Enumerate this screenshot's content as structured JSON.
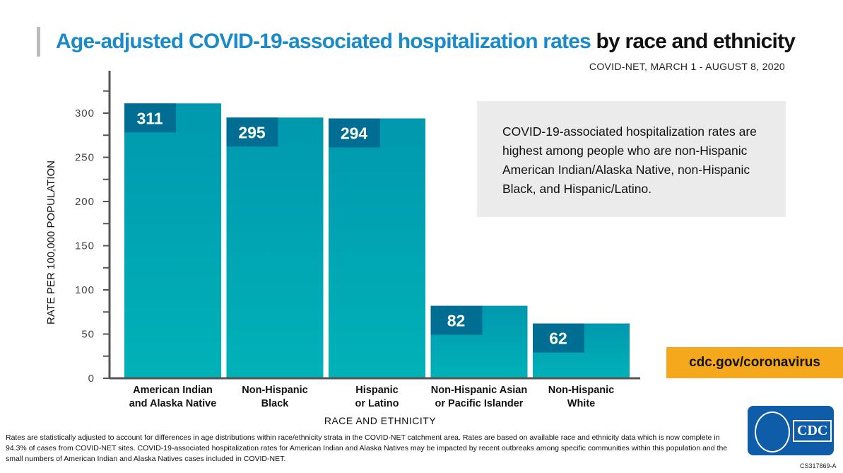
{
  "title": {
    "highlight": "Age-adjusted COVID-19-associated hospitalization rates",
    "rest": " by race and ethnicity"
  },
  "subtitle": "COVID-NET, MARCH 1 - AUGUST 8, 2020",
  "note": "COVID-19-associated hospitalization rates are highest among people who are non-Hispanic American Indian/Alaska Native, non-Hispanic Black, and Hispanic/Latino.",
  "url": "cdc.gov/coronavirus",
  "footnote": "Rates are statistically adjusted to account for differences in age distributions within race/ethnicity strata in the COVID-NET catchment area. Rates are based on available race and ethnicity data which is now complete in 94.3% of cases from COVID-NET sites. COVID-19-associated hospitalization rates for American Indian and Alaska Natives may be impacted by recent outbreaks among specific communities within this population and the small numbers of American Indian and Alaska Natives cases included in COVID-NET.",
  "logo_text": "CDC",
  "code": "CS317869-A",
  "colors": {
    "bar": "#00a5b5",
    "label_box": "#006e93",
    "highlight": "#1a8ac9",
    "url_bg": "#f6a81c"
  },
  "chart_data": {
    "type": "bar",
    "categories": [
      [
        "American Indian",
        "and Alaska Native"
      ],
      [
        "Non-Hispanic",
        "Black"
      ],
      [
        "Hispanic",
        "or Latino"
      ],
      [
        "Non-Hispanic Asian",
        "or Pacific Islander"
      ],
      [
        "Non-Hispanic",
        "White"
      ]
    ],
    "values": [
      311,
      295,
      294,
      82,
      62
    ],
    "xlabel": "RACE AND ETHNICITY",
    "ylabel": "RATE PER 100,000 POPULATION",
    "ylim": [
      0,
      345
    ],
    "yticks": [
      0,
      50,
      100,
      150,
      200,
      250,
      300
    ],
    "grid": false
  }
}
